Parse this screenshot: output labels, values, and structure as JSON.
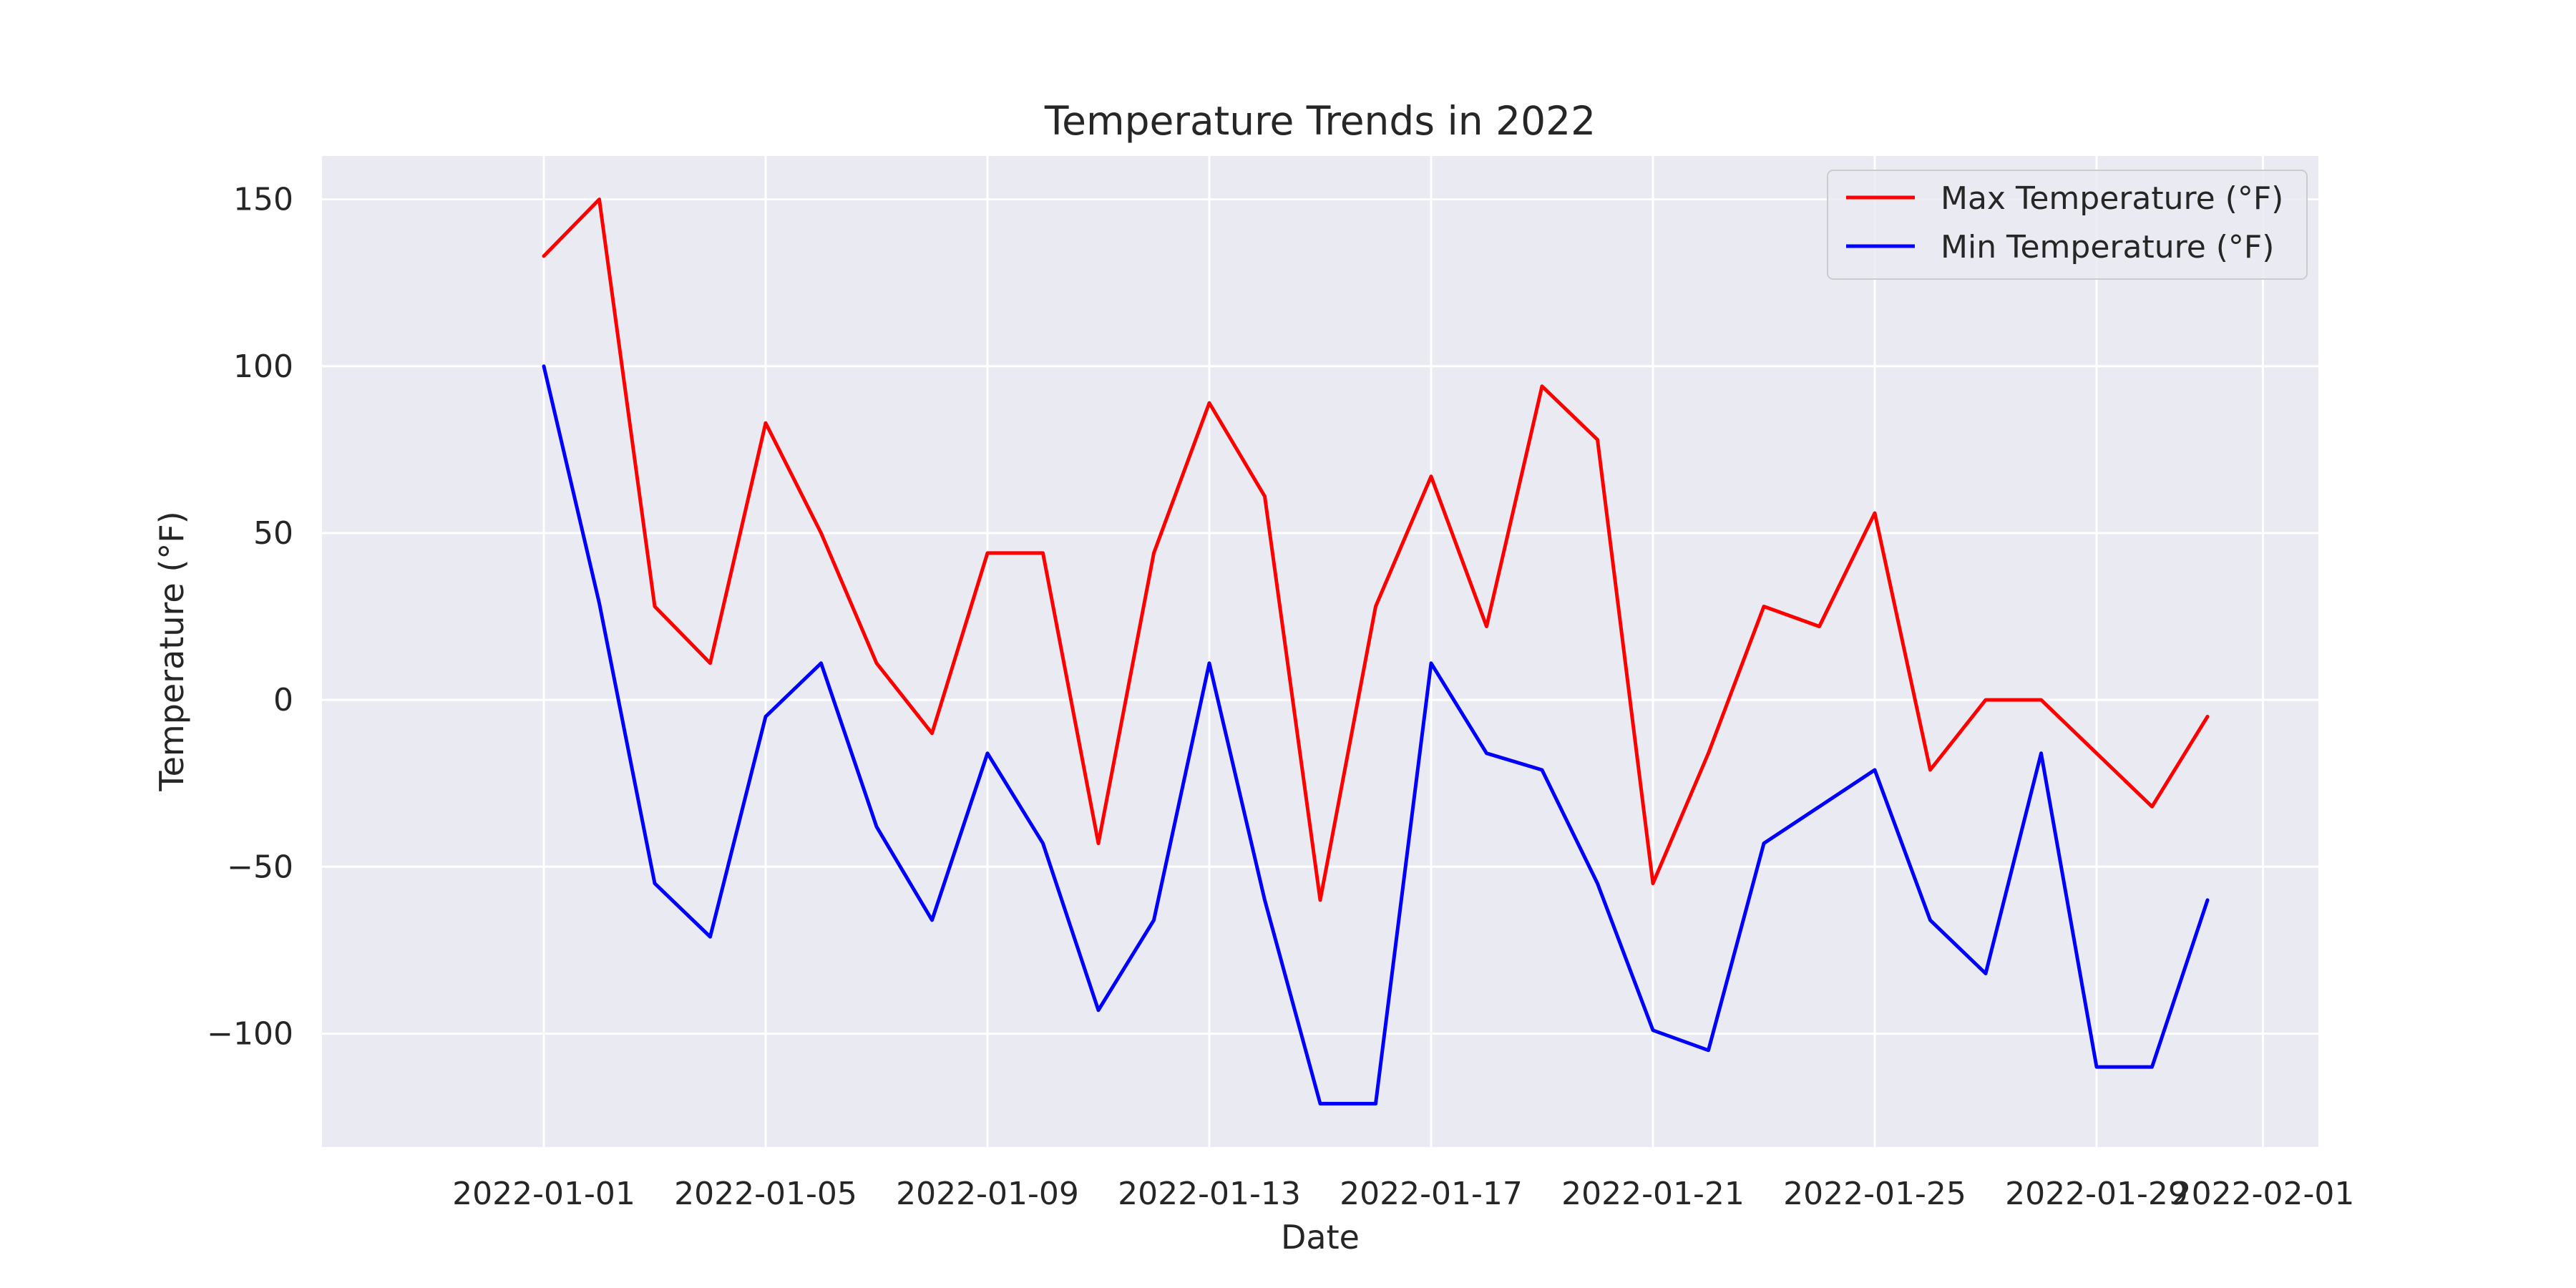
{
  "chart_data": {
    "type": "line",
    "title": "Temperature Trends in 2022",
    "xlabel": "Date",
    "ylabel": "Temperature (°F)",
    "x": [
      "2022-01-01",
      "2022-01-02",
      "2022-01-03",
      "2022-01-04",
      "2022-01-05",
      "2022-01-06",
      "2022-01-07",
      "2022-01-08",
      "2022-01-09",
      "2022-01-10",
      "2022-01-11",
      "2022-01-12",
      "2022-01-13",
      "2022-01-14",
      "2022-01-15",
      "2022-01-16",
      "2022-01-17",
      "2022-01-18",
      "2022-01-19",
      "2022-01-20",
      "2022-01-21",
      "2022-01-22",
      "2022-01-23",
      "2022-01-24",
      "2022-01-25",
      "2022-01-26",
      "2022-01-27",
      "2022-01-28",
      "2022-01-29",
      "2022-01-30",
      "2022-01-31"
    ],
    "series": [
      {
        "name": "Max Temperature (°F)",
        "color": "#ff0000",
        "values": [
          133,
          150,
          28,
          11,
          83,
          50,
          11,
          -10,
          44,
          44,
          -43,
          44,
          89,
          61,
          -60,
          28,
          67,
          22,
          94,
          78,
          -55,
          -16,
          28,
          22,
          56,
          -21,
          0,
          0,
          -16,
          -32,
          -5
        ]
      },
      {
        "name": "Min Temperature (°F)",
        "color": "#0000ff",
        "values": [
          100,
          29,
          -55,
          -71,
          -5,
          11,
          -38,
          -66,
          -16,
          -43,
          -93,
          -66,
          11,
          -60,
          -121,
          -121,
          11,
          -16,
          -21,
          -55,
          -99,
          -105,
          -43,
          -32,
          -21,
          -66,
          -82,
          -16,
          -110,
          -110,
          -60
        ]
      }
    ],
    "ylim": [
      -134,
      163
    ],
    "xlim": [
      "2021-12-28",
      "2022-02-02"
    ],
    "yticks": [
      150,
      100,
      50,
      0,
      -50,
      -100
    ],
    "ytick_labels": [
      "150",
      "100",
      "50",
      "0",
      "−50",
      "−100"
    ],
    "xticks": [
      "2022-01-01",
      "2022-01-05",
      "2022-01-09",
      "2022-01-13",
      "2022-01-17",
      "2022-01-21",
      "2022-01-25",
      "2022-01-29",
      "2022-02-01"
    ],
    "grid": true,
    "legend_position": "top-right",
    "background": "#eaeaf2"
  }
}
